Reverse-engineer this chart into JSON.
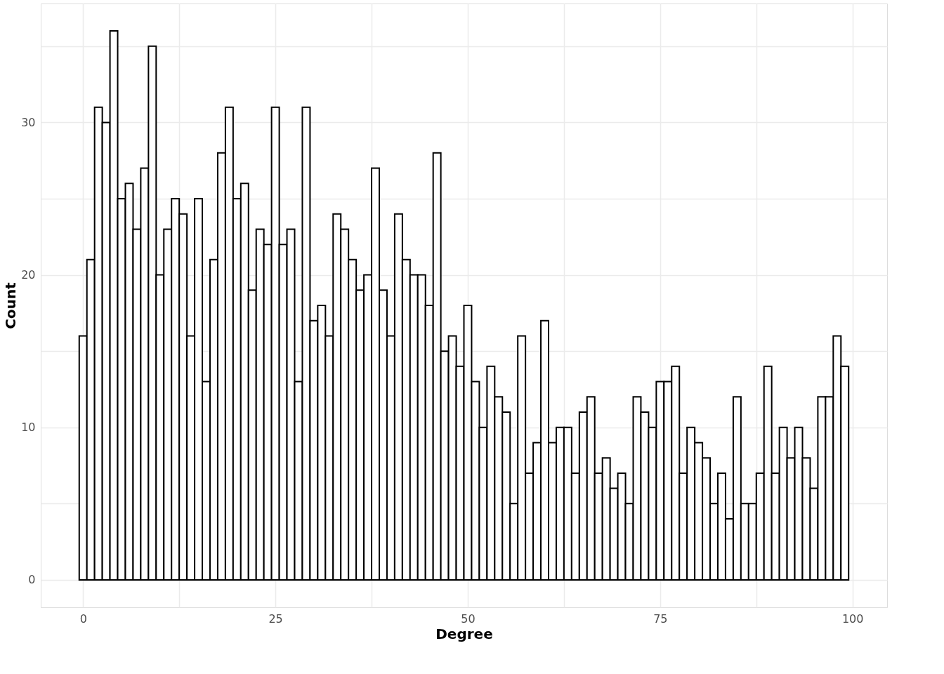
{
  "chart_data": {
    "type": "histogram",
    "xlabel": "Degree",
    "ylabel": "Count",
    "color": "#ffffff",
    "bins": [
      -0.5,
      0.5,
      1.5,
      2.5,
      3.5,
      4.5,
      5.5,
      6.5,
      7.5,
      8.5,
      9.5,
      10.5,
      11.5,
      12.5,
      13.5,
      14.5,
      15.5,
      16.5,
      17.5,
      18.5,
      19.5,
      20.5,
      21.5,
      22.5,
      23.5,
      24.5,
      25.5,
      26.5,
      27.5,
      28.5,
      29.5,
      30.5,
      31.5,
      32.5,
      33.5,
      34.5,
      35.5,
      36.5,
      37.5,
      38.5,
      39.5,
      40.5,
      41.5,
      42.5,
      43.5,
      44.5,
      45.5,
      46.5,
      47.5,
      48.5,
      49.5,
      50.5,
      51.5,
      52.5,
      53.5,
      54.5,
      55.5,
      56.5,
      57.5,
      58.5,
      59.5,
      60.5,
      61.5,
      62.5,
      63.5,
      64.5,
      65.5,
      66.5,
      67.5,
      68.5,
      69.5,
      70.5,
      71.5,
      72.5,
      73.5,
      74.5,
      75.5,
      76.5,
      77.5,
      78.5,
      79.5,
      80.5,
      81.5,
      82.5,
      83.5,
      84.5,
      85.5,
      86.5,
      87.5,
      88.5,
      89.5,
      90.5,
      91.5,
      92.5,
      93.5,
      94.5,
      95.5,
      96.5,
      97.5,
      98.5,
      99.5
    ],
    "values": [
      16,
      21,
      31,
      30,
      36,
      25,
      26,
      23,
      27,
      35,
      20,
      23,
      25,
      24,
      16,
      25,
      13,
      21,
      28,
      31,
      25,
      26,
      19,
      23,
      22,
      31,
      22,
      23,
      13,
      31,
      17,
      18,
      16,
      24,
      23,
      21,
      19,
      20,
      27,
      19,
      16,
      24,
      21,
      20,
      20,
      18,
      28,
      15,
      16,
      14,
      18,
      13,
      10,
      14,
      12,
      11,
      5,
      16,
      7,
      9,
      17,
      9,
      10,
      10,
      7,
      11,
      12,
      7,
      8,
      6,
      7,
      5,
      12,
      11,
      10,
      13,
      13,
      14,
      7,
      10,
      9,
      8,
      5,
      7,
      4,
      12,
      5,
      5,
      7,
      14,
      7,
      10,
      8,
      10,
      8,
      6,
      12,
      12,
      16,
      14
    ],
    "xlim": [
      -5.5,
      104.5
    ],
    "ylim": [
      -1.8,
      37.8
    ],
    "xticks": [
      0,
      {
        "value": 12.5,
        "label": null
      },
      25,
      {
        "value": 37.5,
        "label": null
      },
      50,
      {
        "value": 62.5,
        "label": null
      },
      75,
      {
        "value": 87.5,
        "label": null
      },
      100
    ],
    "yticks": [
      0,
      {
        "value": 5,
        "label": null
      },
      10,
      {
        "value": 15,
        "label": null
      },
      20,
      {
        "value": 25,
        "label": null
      },
      30,
      {
        "value": 35,
        "label": null
      }
    ],
    "grid": true
  }
}
